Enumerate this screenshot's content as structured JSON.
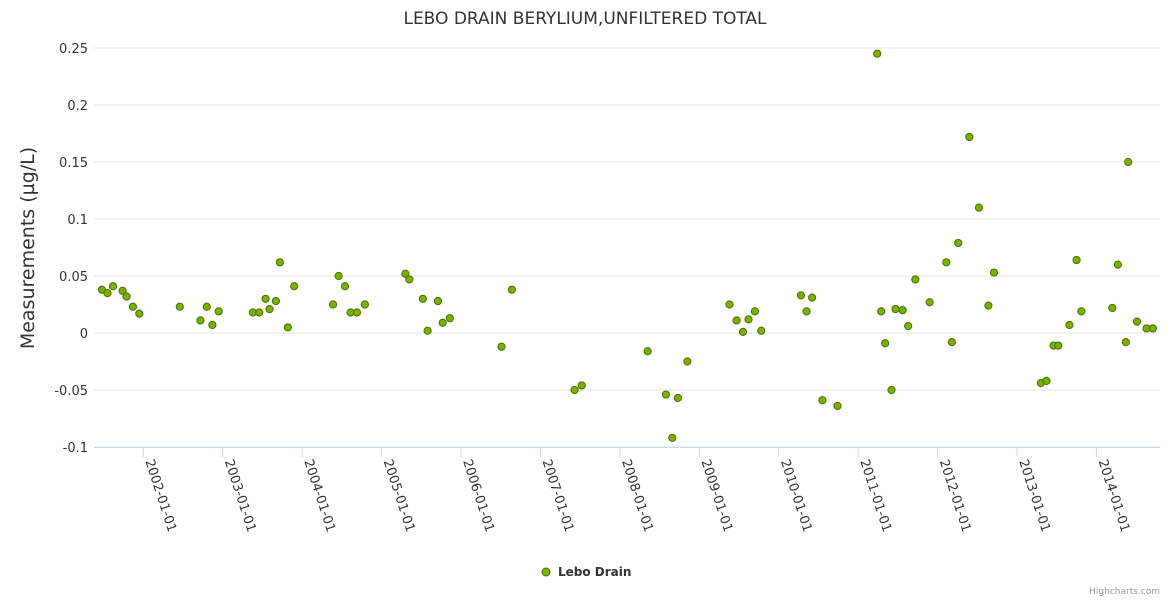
{
  "chart_data": {
    "type": "scatter",
    "title": "LEBO DRAIN BERYLIUM,UNFILTERED TOTAL",
    "xlabel": "",
    "ylabel": "Measurements (µg/L)",
    "ylim": [
      -0.1,
      0.25
    ],
    "yticks": [
      "0.25",
      "0.2",
      "0.15",
      "0.1",
      "0.05",
      "0",
      "-0.05",
      "-0.1"
    ],
    "ytick_values": [
      0.25,
      0.2,
      0.15,
      0.1,
      0.05,
      0,
      -0.05,
      -0.1
    ],
    "xlim": [
      2001.38,
      2014.8
    ],
    "xticks": [
      "2002-01-01",
      "2003-01-01",
      "2004-01-01",
      "2005-01-01",
      "2006-01-01",
      "2007-01-01",
      "2008-01-01",
      "2009-01-01",
      "2010-01-01",
      "2011-01-01",
      "2012-01-01",
      "2013-01-01",
      "2014-01-01"
    ],
    "xtick_values": [
      2002,
      2003,
      2004,
      2005,
      2006,
      2007,
      2008,
      2009,
      2010,
      2011,
      2012,
      2013,
      2014
    ],
    "grid": true,
    "legend_position": "bottom-center",
    "credits": "Highcharts.com",
    "series": [
      {
        "name": "Lebo Drain",
        "color": "#7cb000",
        "marker_border": "#4a7000",
        "x": [
          2001.48,
          2001.55,
          2001.62,
          2001.74,
          2001.79,
          2001.87,
          2001.95,
          2002.46,
          2002.72,
          2002.8,
          2002.87,
          2002.95,
          2003.38,
          2003.46,
          2003.54,
          2003.59,
          2003.67,
          2003.72,
          2003.82,
          2003.9,
          2004.39,
          2004.46,
          2004.54,
          2004.61,
          2004.69,
          2004.79,
          2005.3,
          2005.35,
          2005.52,
          2005.58,
          2005.71,
          2005.77,
          2005.86,
          2006.51,
          2006.64,
          2007.43,
          2007.52,
          2008.35,
          2008.58,
          2008.66,
          2008.73,
          2008.85,
          2009.38,
          2009.47,
          2009.55,
          2009.62,
          2009.7,
          2009.78,
          2010.28,
          2010.35,
          2010.42,
          2010.55,
          2010.74,
          2011.24,
          2011.29,
          2011.34,
          2011.42,
          2011.47,
          2011.56,
          2011.63,
          2011.72,
          2011.9,
          2012.11,
          2012.18,
          2012.26,
          2012.4,
          2012.52,
          2012.64,
          2012.71,
          2013.3,
          2013.37,
          2013.46,
          2013.52,
          2013.66,
          2013.75,
          2013.81,
          2014.2,
          2014.27,
          2014.37,
          2014.4,
          2014.51,
          2014.63,
          2014.71
        ],
        "y": [
          0.038,
          0.035,
          0.041,
          0.037,
          0.032,
          0.023,
          0.017,
          0.023,
          0.011,
          0.023,
          0.007,
          0.019,
          0.018,
          0.018,
          0.03,
          0.021,
          0.028,
          0.062,
          0.005,
          0.041,
          0.025,
          0.05,
          0.041,
          0.018,
          0.018,
          0.025,
          0.052,
          0.047,
          0.03,
          0.002,
          0.028,
          0.009,
          0.013,
          -0.012,
          0.038,
          -0.05,
          -0.046,
          -0.016,
          -0.054,
          -0.092,
          -0.057,
          -0.025,
          0.025,
          0.011,
          0.001,
          0.012,
          0.019,
          0.002,
          0.033,
          0.019,
          0.031,
          -0.059,
          -0.064,
          0.245,
          0.019,
          -0.009,
          -0.05,
          0.021,
          0.02,
          0.006,
          0.047,
          0.027,
          0.062,
          -0.008,
          0.079,
          0.172,
          0.11,
          0.024,
          0.053,
          -0.044,
          -0.042,
          -0.011,
          -0.011,
          0.007,
          0.064,
          0.019,
          0.022,
          0.06,
          -0.008,
          0.15,
          0.01,
          0.004,
          0.004
        ]
      }
    ]
  }
}
